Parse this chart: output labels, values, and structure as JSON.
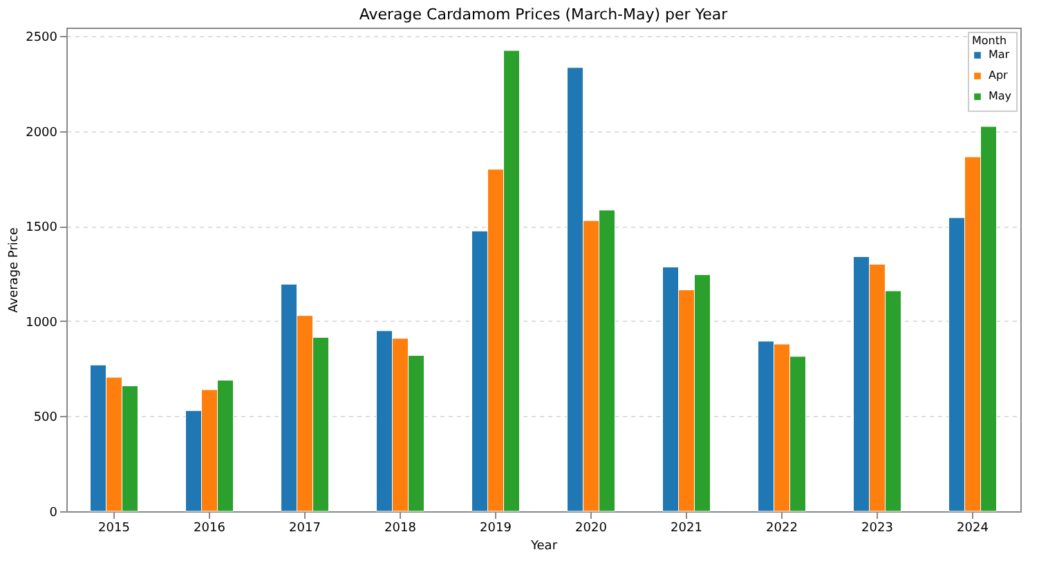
{
  "chart_data": {
    "type": "bar",
    "title": "Average Cardamom Prices (March-May) per Year",
    "xlabel": "Year",
    "ylabel": "Average Price",
    "legend_title": "Month",
    "categories": [
      "2015",
      "2016",
      "2017",
      "2018",
      "2019",
      "2020",
      "2021",
      "2022",
      "2023",
      "2024"
    ],
    "series": [
      {
        "name": "Mar",
        "color": "#1f77b4",
        "values": [
          770,
          530,
          1195,
          950,
          1475,
          2335,
          1285,
          895,
          1340,
          1545
        ]
      },
      {
        "name": "Apr",
        "color": "#ff7f0e",
        "values": [
          705,
          640,
          1030,
          910,
          1800,
          1530,
          1165,
          880,
          1300,
          1865
        ]
      },
      {
        "name": "May",
        "color": "#2ca02c",
        "values": [
          660,
          690,
          915,
          820,
          2425,
          1585,
          1245,
          815,
          1160,
          2025
        ]
      }
    ],
    "ylim": [
      0,
      2545
    ],
    "yticks": [
      0,
      500,
      1000,
      1500,
      2000,
      2500
    ],
    "grid": "y",
    "legend": "top right"
  }
}
